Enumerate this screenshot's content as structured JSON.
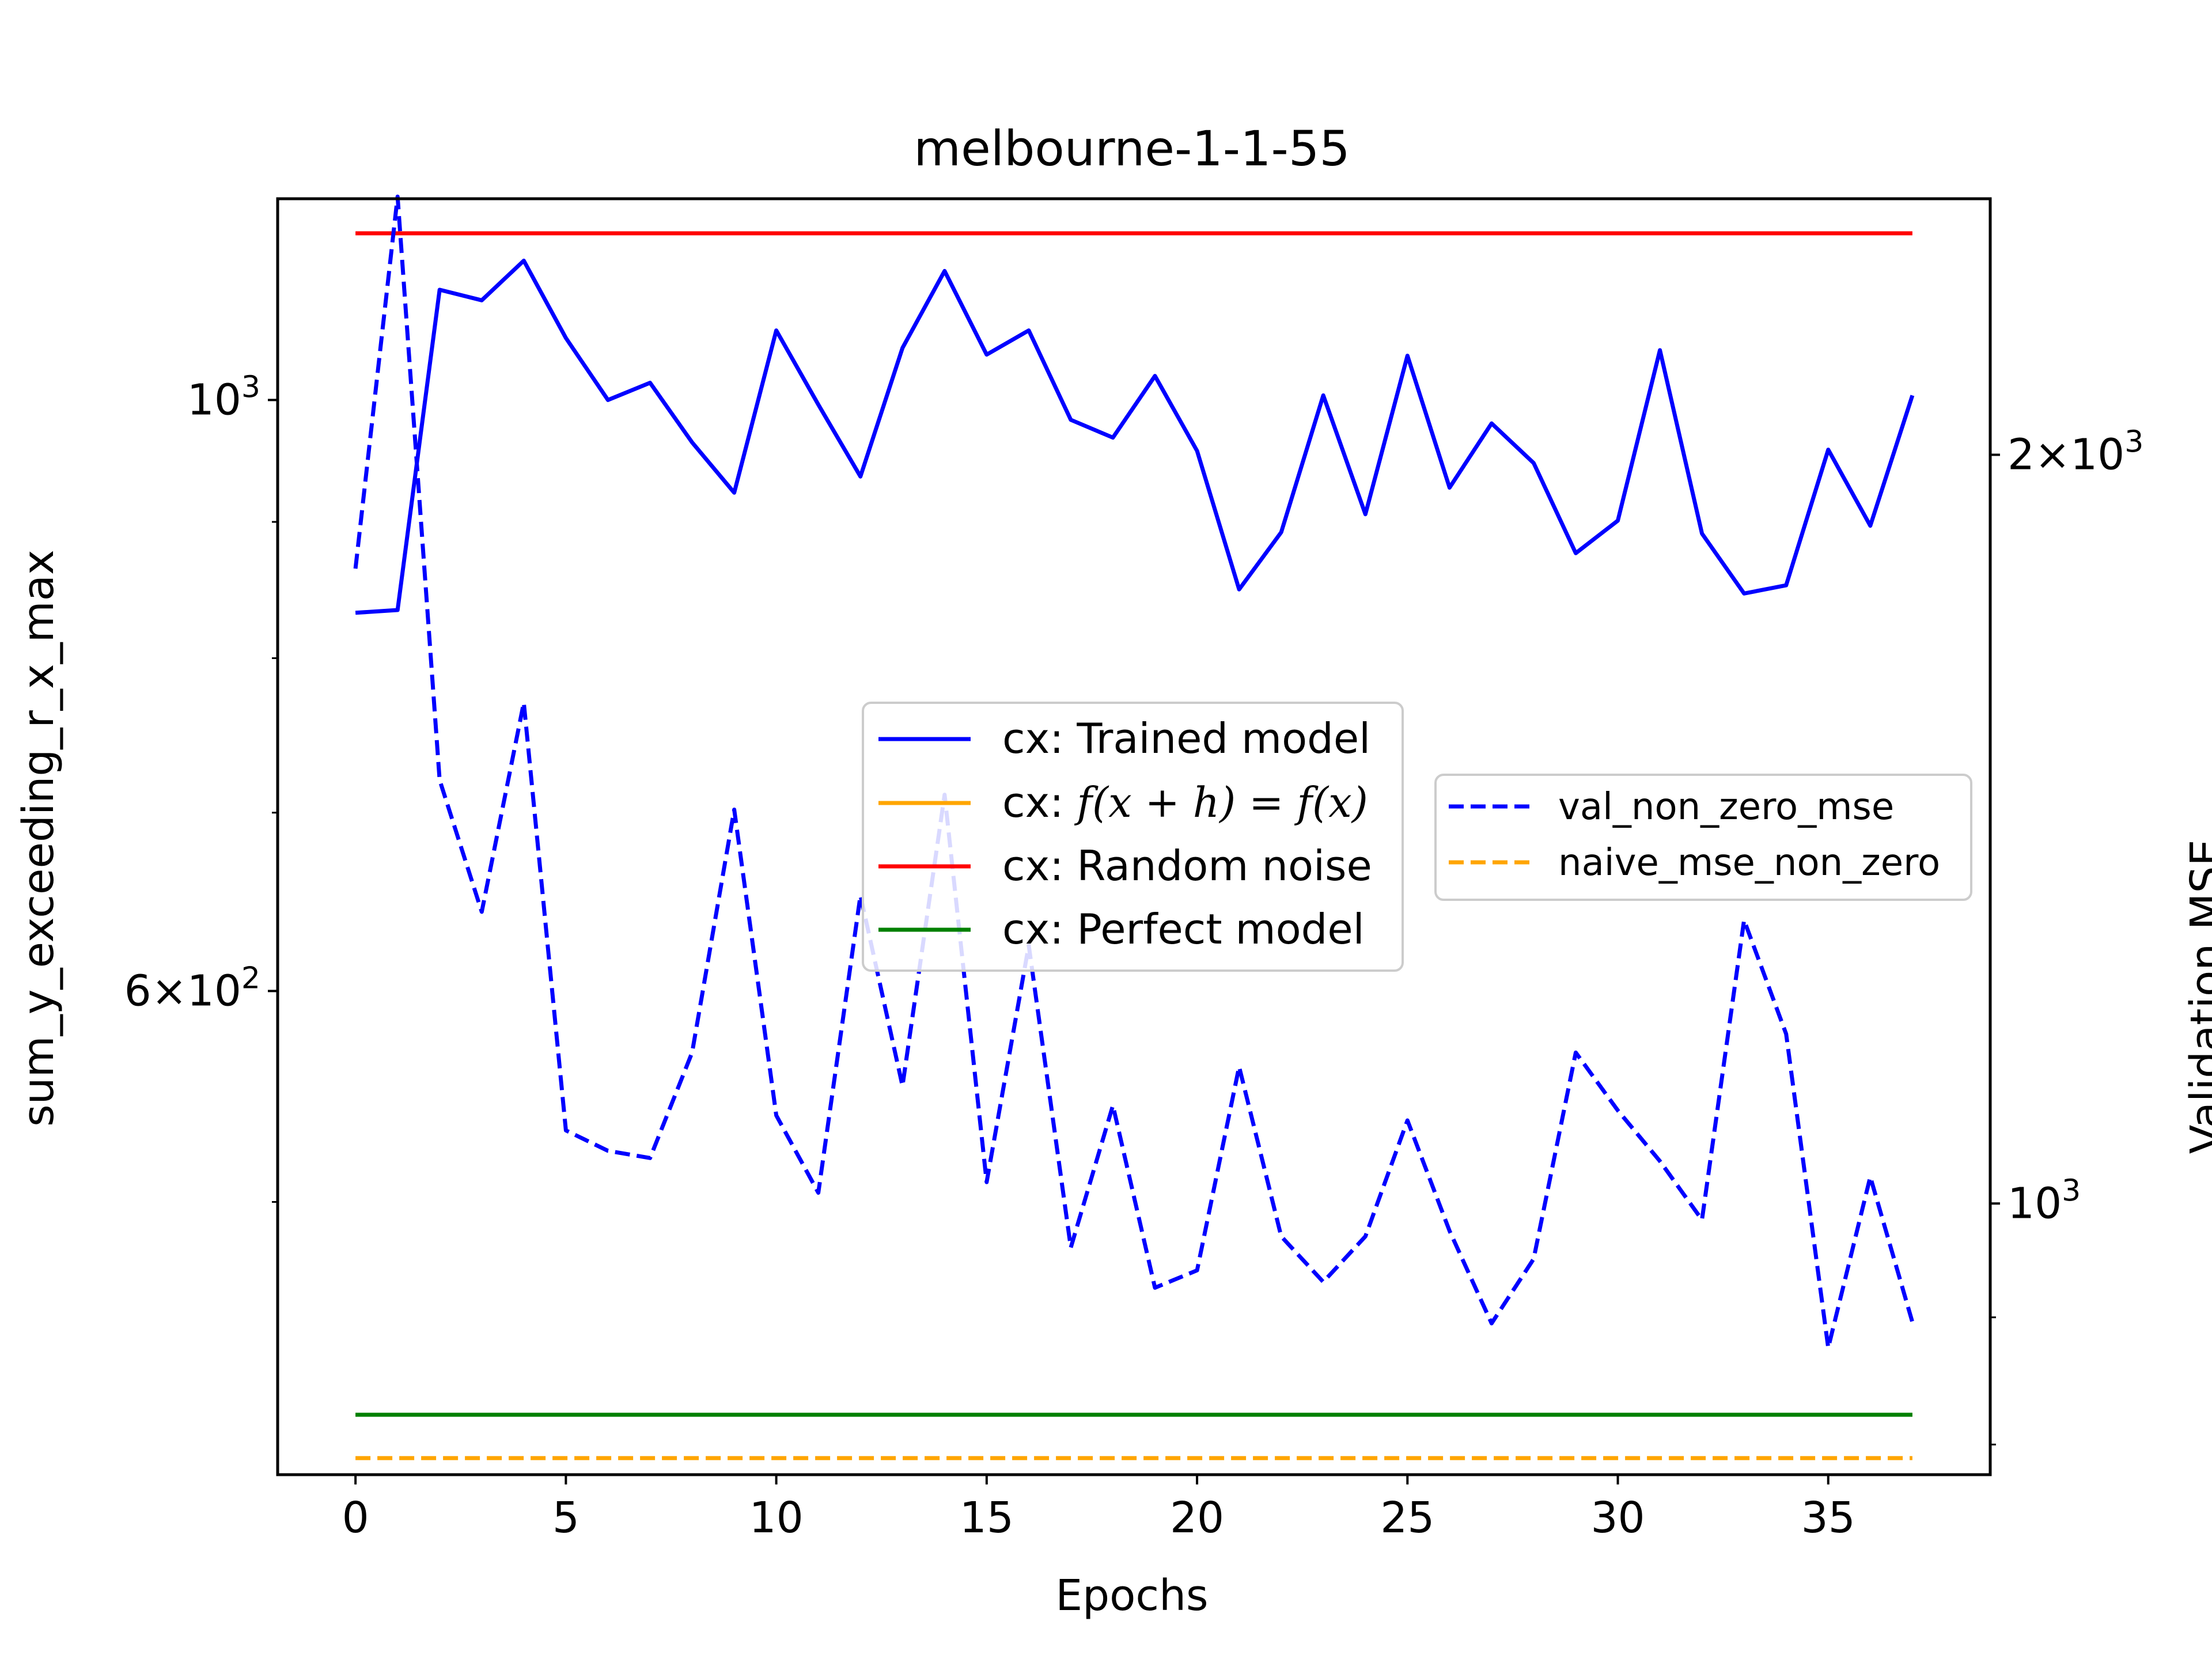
{
  "chart_data": {
    "type": "line",
    "title": "melbourne-1-1-55",
    "xlabel": "Epochs",
    "ylabel": "sum_y_exceeding_r_x_max",
    "y2label": "Validation MSE",
    "x": [
      0,
      1,
      2,
      3,
      4,
      5,
      6,
      7,
      8,
      9,
      10,
      11,
      12,
      13,
      14,
      15,
      16,
      17,
      18,
      19,
      20,
      21,
      22,
      23,
      24,
      25,
      26,
      27,
      28,
      29,
      30,
      31,
      32,
      33,
      34,
      35,
      36,
      37
    ],
    "xlim": [
      -1.85,
      38.85
    ],
    "xticks": [
      0,
      5,
      10,
      15,
      20,
      25,
      30,
      35
    ],
    "y_axis": {
      "scale": "log",
      "lim": [
        395,
        1190
      ],
      "labeled_ticks": [
        {
          "value": 1000,
          "base": "10",
          "exp": "3"
        },
        {
          "value": 600,
          "mantissa": "6",
          "base": "10",
          "exp": "2"
        }
      ],
      "minor_ticks": [
        500,
        700,
        800,
        900
      ]
    },
    "y2_axis": {
      "scale": "log",
      "lim": [
        778,
        2535
      ],
      "labeled_ticks": [
        {
          "value": 2000,
          "mantissa": "2",
          "base": "10",
          "exp": "3"
        },
        {
          "value": 1000,
          "base": "10",
          "exp": "3"
        }
      ],
      "minor_ticks": [
        900,
        800
      ]
    },
    "series": [
      {
        "name": "cx: Trained model",
        "axis": "left",
        "color": "#0000ff",
        "dash": "solid",
        "values": [
          832,
          834,
          1100,
          1090,
          1128,
          1055,
          1000,
          1015,
          964,
          923,
          1062,
          996,
          936,
          1046,
          1118,
          1040,
          1062,
          983,
          968,
          1021,
          957,
          849,
          892,
          1004,
          906,
          1039,
          927,
          980,
          947,
          876,
          901,
          1044,
          891,
          846,
          852,
          958,
          897,
          1004
        ]
      },
      {
        "name": "cx: f(x+h)=f(x)",
        "axis": "left",
        "color": "#ffa500",
        "dash": "solid",
        "values_constant": 416
      },
      {
        "name": "cx: Random noise",
        "axis": "left",
        "color": "#ff0000",
        "dash": "solid",
        "values_constant": 1155
      },
      {
        "name": "cx: Perfect model",
        "axis": "left",
        "color": "#008000",
        "dash": "solid",
        "values_constant": 416
      },
      {
        "name": "val_non_zero_mse",
        "axis": "right",
        "color": "#0000ff",
        "dash": "dashed",
        "values": [
          1800,
          2540,
          1480,
          1310,
          1590,
          1070,
          1050,
          1043,
          1150,
          1440,
          1085,
          1010,
          1330,
          1115,
          1460,
          1020,
          1270,
          960,
          1095,
          925,
          940,
          1135,
          970,
          930,
          970,
          1080,
          975,
          895,
          950,
          1150,
          1090,
          1040,
          985,
          1300,
          1170,
          875,
          1025,
          896
        ]
      },
      {
        "name": "naive_mse_non_zero",
        "axis": "right",
        "color": "#ffa500",
        "dash": "dashed",
        "values_constant": 790
      }
    ],
    "legends": [
      {
        "position": "center",
        "entries": [
          "cx: Trained model",
          "cx: f(x+h)=f(x)",
          "cx: Random noise",
          "cx: Perfect model"
        ]
      },
      {
        "position": "center-right",
        "entries": [
          "val_non_zero_mse",
          "naive_mse_non_zero"
        ]
      }
    ],
    "grid": false
  },
  "legend_display": {
    "main": {
      "trained": "cx: Trained model",
      "naive_prefix": "cx: ",
      "naive_formula": "f(x + h) = f(x)",
      "noise": "cx: Random noise",
      "perfect": "cx: Perfect model"
    },
    "secondary": {
      "val": "val_non_zero_mse",
      "naive": "naive_mse_non_zero"
    }
  }
}
